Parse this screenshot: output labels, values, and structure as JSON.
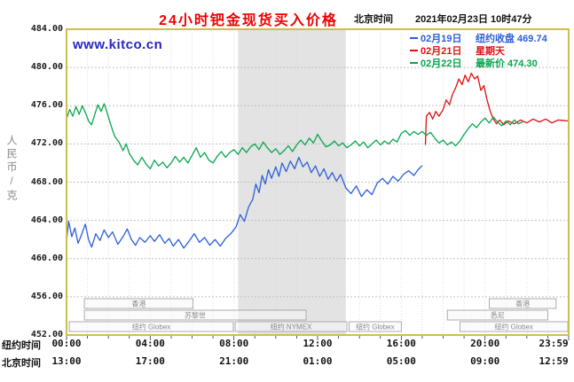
{
  "header": {
    "title": "24小时钯金现货买入价格",
    "timezone_label": "北京时间",
    "timestamp": "2021年02月23日 10时47分"
  },
  "watermark": "www.kitco.cn",
  "y_axis_title": "人民币/克",
  "x_axis": {
    "row1_label": "纽约时间",
    "row2_label": "北京时间",
    "row1_ticks": [
      "00:00",
      "04:00",
      "08:00",
      "12:00",
      "16:00",
      "20:00",
      "23:59"
    ],
    "row2_ticks": [
      "13:00",
      "17:00",
      "21:00",
      "01:00",
      "05:00",
      "09:00",
      "12:59"
    ]
  },
  "legend": [
    {
      "date": "02月19日",
      "desc": "纽约收盘 469.74",
      "color": "#2b5fd9"
    },
    {
      "date": "02月21日",
      "desc": "星期天",
      "color": "#e01010"
    },
    {
      "date": "02月22日",
      "desc": "最新价 474.30",
      "color": "#06a64f"
    }
  ],
  "chart_data": {
    "type": "line",
    "title": "24小时钯金现货买入价格",
    "ylabel": "人民币/克",
    "ylim": [
      452,
      484
    ],
    "xlim_hours": [
      0,
      24
    ],
    "y_ticks": [
      452,
      456,
      460,
      464,
      468,
      472,
      476,
      480,
      484
    ],
    "tick_hours": [
      0,
      4,
      8,
      12,
      16,
      20,
      23.983
    ],
    "shaded_band_hours": [
      8.2,
      13.35
    ],
    "grid": true,
    "legend_position": "top-right",
    "style": {
      "frame": "#cdbe4e",
      "band": "#e3e3e3",
      "grid_h": "#c0c0c0",
      "grid_v": "#dcdcdc",
      "session_border": "#9a9a9a",
      "session_fill": "rgba(248,248,248,0.55)",
      "session_text": "#8a8a8a",
      "tick": "#333333"
    },
    "series": [
      {
        "name": "02月19日 纽约收盘",
        "close": 469.74,
        "color": "#2b5fd9",
        "points": [
          [
            0.0,
            461.8
          ],
          [
            0.1,
            463.9
          ],
          [
            0.25,
            462.3
          ],
          [
            0.4,
            463.2
          ],
          [
            0.55,
            461.6
          ],
          [
            0.7,
            462.4
          ],
          [
            0.9,
            463.6
          ],
          [
            1.05,
            462.0
          ],
          [
            1.2,
            461.2
          ],
          [
            1.4,
            462.6
          ],
          [
            1.6,
            461.9
          ],
          [
            1.8,
            463.0
          ],
          [
            2.0,
            462.2
          ],
          [
            2.2,
            462.8
          ],
          [
            2.45,
            461.5
          ],
          [
            2.7,
            462.3
          ],
          [
            2.9,
            463.1
          ],
          [
            3.1,
            462.0
          ],
          [
            3.3,
            461.4
          ],
          [
            3.5,
            462.2
          ],
          [
            3.75,
            461.7
          ],
          [
            4.0,
            462.4
          ],
          [
            4.2,
            461.8
          ],
          [
            4.45,
            462.5
          ],
          [
            4.7,
            461.6
          ],
          [
            4.9,
            462.1
          ],
          [
            5.1,
            461.3
          ],
          [
            5.35,
            462.0
          ],
          [
            5.6,
            461.1
          ],
          [
            5.85,
            461.8
          ],
          [
            6.1,
            462.6
          ],
          [
            6.35,
            461.7
          ],
          [
            6.6,
            462.2
          ],
          [
            6.85,
            461.4
          ],
          [
            7.1,
            462.0
          ],
          [
            7.35,
            461.3
          ],
          [
            7.6,
            462.1
          ],
          [
            7.85,
            462.6
          ],
          [
            8.1,
            463.3
          ],
          [
            8.3,
            464.6
          ],
          [
            8.5,
            463.9
          ],
          [
            8.7,
            465.4
          ],
          [
            8.9,
            466.2
          ],
          [
            9.05,
            467.8
          ],
          [
            9.2,
            466.9
          ],
          [
            9.35,
            468.7
          ],
          [
            9.5,
            467.8
          ],
          [
            9.65,
            469.3
          ],
          [
            9.8,
            468.4
          ],
          [
            10.0,
            469.6
          ],
          [
            10.15,
            468.6
          ],
          [
            10.3,
            470.0
          ],
          [
            10.5,
            469.1
          ],
          [
            10.7,
            470.2
          ],
          [
            10.9,
            469.4
          ],
          [
            11.1,
            470.6
          ],
          [
            11.3,
            469.6
          ],
          [
            11.5,
            470.1
          ],
          [
            11.7,
            469.0
          ],
          [
            11.9,
            469.7
          ],
          [
            12.1,
            468.6
          ],
          [
            12.3,
            469.4
          ],
          [
            12.5,
            468.3
          ],
          [
            12.7,
            469.0
          ],
          [
            12.9,
            468.1
          ],
          [
            13.1,
            468.8
          ],
          [
            13.35,
            467.4
          ],
          [
            13.6,
            466.8
          ],
          [
            13.85,
            467.6
          ],
          [
            14.1,
            466.5
          ],
          [
            14.35,
            467.2
          ],
          [
            14.6,
            466.7
          ],
          [
            14.85,
            467.9
          ],
          [
            15.1,
            468.4
          ],
          [
            15.35,
            467.8
          ],
          [
            15.6,
            468.6
          ],
          [
            15.85,
            468.1
          ],
          [
            16.1,
            468.8
          ],
          [
            16.35,
            469.2
          ],
          [
            16.6,
            468.7
          ],
          [
            16.8,
            469.3
          ],
          [
            17.0,
            469.74
          ]
        ]
      },
      {
        "name": "02月21日 星期天",
        "color": "#e01010",
        "points": [
          [
            17.15,
            471.9
          ],
          [
            17.2,
            474.9
          ],
          [
            17.35,
            475.3
          ],
          [
            17.5,
            474.6
          ],
          [
            17.65,
            475.4
          ],
          [
            17.8,
            474.9
          ],
          [
            18.0,
            475.6
          ],
          [
            18.15,
            476.6
          ],
          [
            18.3,
            476.1
          ],
          [
            18.45,
            477.2
          ],
          [
            18.6,
            477.9
          ],
          [
            18.75,
            478.8
          ],
          [
            18.9,
            478.2
          ],
          [
            19.05,
            479.2
          ],
          [
            19.2,
            478.5
          ],
          [
            19.35,
            479.4
          ],
          [
            19.5,
            478.8
          ],
          [
            19.65,
            479.1
          ],
          [
            19.8,
            477.6
          ],
          [
            19.95,
            478.1
          ],
          [
            20.1,
            476.6
          ],
          [
            20.25,
            475.4
          ],
          [
            20.4,
            474.6
          ],
          [
            20.55,
            474.1
          ],
          [
            20.7,
            474.5
          ],
          [
            20.9,
            474.0
          ],
          [
            21.1,
            474.4
          ],
          [
            21.4,
            474.1
          ],
          [
            21.7,
            474.5
          ],
          [
            22.0,
            474.2
          ],
          [
            22.3,
            474.6
          ],
          [
            22.6,
            474.3
          ],
          [
            22.9,
            474.6
          ],
          [
            23.2,
            474.2
          ],
          [
            23.5,
            474.5
          ],
          [
            23.98,
            474.4
          ]
        ]
      },
      {
        "name": "02月22日 最新价",
        "last": 474.3,
        "color": "#06a64f",
        "points": [
          [
            0.0,
            474.6
          ],
          [
            0.15,
            475.6
          ],
          [
            0.3,
            474.9
          ],
          [
            0.45,
            475.9
          ],
          [
            0.6,
            475.1
          ],
          [
            0.75,
            476.0
          ],
          [
            0.9,
            475.3
          ],
          [
            1.05,
            474.4
          ],
          [
            1.2,
            474.0
          ],
          [
            1.35,
            475.1
          ],
          [
            1.5,
            476.1
          ],
          [
            1.65,
            475.4
          ],
          [
            1.8,
            476.2
          ],
          [
            1.95,
            475.2
          ],
          [
            2.1,
            474.1
          ],
          [
            2.3,
            472.8
          ],
          [
            2.5,
            472.2
          ],
          [
            2.7,
            471.3
          ],
          [
            2.85,
            472.0
          ],
          [
            3.0,
            471.0
          ],
          [
            3.2,
            470.3
          ],
          [
            3.4,
            469.8
          ],
          [
            3.6,
            470.6
          ],
          [
            3.8,
            469.9
          ],
          [
            4.0,
            469.4
          ],
          [
            4.2,
            470.3
          ],
          [
            4.4,
            469.7
          ],
          [
            4.6,
            470.1
          ],
          [
            4.8,
            469.5
          ],
          [
            5.0,
            470.0
          ],
          [
            5.2,
            470.7
          ],
          [
            5.4,
            470.1
          ],
          [
            5.6,
            470.6
          ],
          [
            5.8,
            470.0
          ],
          [
            6.0,
            470.8
          ],
          [
            6.2,
            471.6
          ],
          [
            6.4,
            470.6
          ],
          [
            6.6,
            471.1
          ],
          [
            6.8,
            470.3
          ],
          [
            7.0,
            470.0
          ],
          [
            7.2,
            470.7
          ],
          [
            7.4,
            471.2
          ],
          [
            7.6,
            470.6
          ],
          [
            7.8,
            471.1
          ],
          [
            8.0,
            471.4
          ],
          [
            8.2,
            470.9
          ],
          [
            8.4,
            471.6
          ],
          [
            8.6,
            471.1
          ],
          [
            8.8,
            471.7
          ],
          [
            9.0,
            472.0
          ],
          [
            9.2,
            471.4
          ],
          [
            9.4,
            472.2
          ],
          [
            9.6,
            471.6
          ],
          [
            9.8,
            471.1
          ],
          [
            10.0,
            471.5
          ],
          [
            10.2,
            470.9
          ],
          [
            10.4,
            471.3
          ],
          [
            10.6,
            471.8
          ],
          [
            10.8,
            471.2
          ],
          [
            11.0,
            471.9
          ],
          [
            11.2,
            472.4
          ],
          [
            11.4,
            471.9
          ],
          [
            11.6,
            472.6
          ],
          [
            11.8,
            472.1
          ],
          [
            12.0,
            473.0
          ],
          [
            12.2,
            472.3
          ],
          [
            12.4,
            471.7
          ],
          [
            12.6,
            471.9
          ],
          [
            12.8,
            472.3
          ],
          [
            13.0,
            471.8
          ],
          [
            13.2,
            472.1
          ],
          [
            13.4,
            471.6
          ],
          [
            13.6,
            471.9
          ],
          [
            13.8,
            472.3
          ],
          [
            14.0,
            471.8
          ],
          [
            14.2,
            472.2
          ],
          [
            14.4,
            471.6
          ],
          [
            14.6,
            472.0
          ],
          [
            14.8,
            472.4
          ],
          [
            15.0,
            471.9
          ],
          [
            15.2,
            472.3
          ],
          [
            15.4,
            472.0
          ],
          [
            15.6,
            472.5
          ],
          [
            15.8,
            472.2
          ],
          [
            16.0,
            473.1
          ],
          [
            16.2,
            473.4
          ],
          [
            16.4,
            472.9
          ],
          [
            16.6,
            473.3
          ],
          [
            16.8,
            473.0
          ],
          [
            17.0,
            473.3
          ],
          [
            17.2,
            472.9
          ],
          [
            17.4,
            473.2
          ],
          [
            17.6,
            472.6
          ],
          [
            17.8,
            472.1
          ],
          [
            18.0,
            472.4
          ],
          [
            18.2,
            471.9
          ],
          [
            18.4,
            472.2
          ],
          [
            18.6,
            471.8
          ],
          [
            18.8,
            472.3
          ],
          [
            19.0,
            473.0
          ],
          [
            19.2,
            473.6
          ],
          [
            19.4,
            474.1
          ],
          [
            19.6,
            473.7
          ],
          [
            19.8,
            474.3
          ],
          [
            20.0,
            474.7
          ],
          [
            20.2,
            474.2
          ],
          [
            20.4,
            474.8
          ],
          [
            20.6,
            474.3
          ],
          [
            20.8,
            473.9
          ],
          [
            21.0,
            474.4
          ],
          [
            21.2,
            474.0
          ],
          [
            21.4,
            474.5
          ],
          [
            21.6,
            474.1
          ],
          [
            21.8,
            474.3
          ]
        ]
      }
    ],
    "sessions": [
      {
        "label": "香港",
        "row": 0,
        "start": 0.85,
        "end": 6.05
      },
      {
        "label": "香港",
        "row": 0,
        "start": 20.2,
        "end": 23.4
      },
      {
        "label": "苏黎世",
        "row": 1,
        "start": 0.85,
        "end": 11.45
      },
      {
        "label": "悉尼",
        "row": 1,
        "start": 18.2,
        "end": 23.0
      },
      {
        "label": "纽约 Globex",
        "row": 2,
        "start": 0.13,
        "end": 7.97
      },
      {
        "label": "纽约 NYMEX",
        "row": 2,
        "start": 8.06,
        "end": 13.4
      },
      {
        "label": "纽约 Globex",
        "row": 2,
        "start": 13.5,
        "end": 16.0
      },
      {
        "label": "纽约 Globex",
        "row": 2,
        "start": 18.8,
        "end": 23.96
      }
    ]
  }
}
